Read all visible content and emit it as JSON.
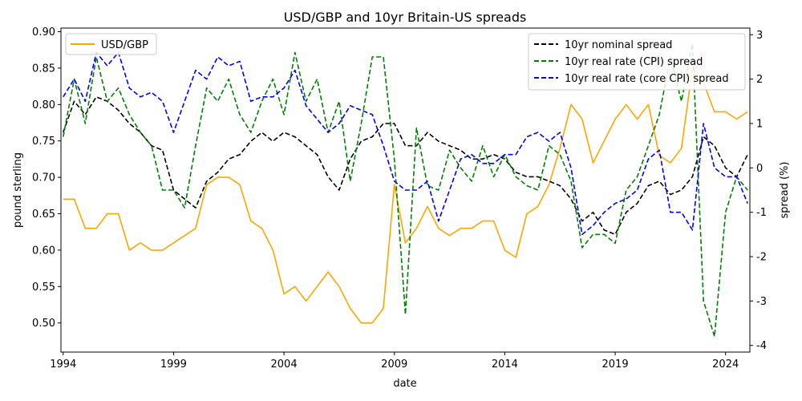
{
  "chart_data": {
    "type": "line",
    "title": "USD/GBP and 10yr Britain-US spreads",
    "xlabel": "date",
    "ylabel_left": "pound sterling",
    "ylabel_right": "spread (%)",
    "x_ticks": [
      "1994",
      "1999",
      "2004",
      "2009",
      "2014",
      "2019",
      "2024"
    ],
    "xlim": [
      1993.9,
      2025.1
    ],
    "ylim_left": [
      0.46,
      0.905
    ],
    "ylim_right": [
      -4.15,
      3.15
    ],
    "y_ticks_left": [
      0.5,
      0.55,
      0.6,
      0.65,
      0.7,
      0.75,
      0.8,
      0.85,
      0.9
    ],
    "y_ticks_right": [
      -4,
      -3,
      -2,
      -1,
      0,
      1,
      2,
      3
    ],
    "legend_left": {
      "placement": "top-left",
      "entries": [
        "USD/GBP"
      ]
    },
    "legend_right": {
      "placement": "top-right",
      "entries": [
        "10yr nominal spread",
        "10yr real rate (CPI) spread",
        "10yr real rate (core CPI) spread"
      ]
    },
    "grid": false,
    "series": [
      {
        "name": "USD/GBP",
        "axis": "left",
        "color": "#ffa500",
        "dash": "solid",
        "x": [
          1994.0,
          1994.5,
          1995.0,
          1995.5,
          1996.0,
          1996.5,
          1997.0,
          1997.5,
          1998.0,
          1998.5,
          1999.0,
          1999.5,
          2000.0,
          2000.5,
          2001.0,
          2001.5,
          2002.0,
          2002.5,
          2003.0,
          2003.5,
          2004.0,
          2004.5,
          2005.0,
          2005.5,
          2006.0,
          2006.5,
          2007.0,
          2007.5,
          2008.0,
          2008.5,
          2009.0,
          2009.5,
          2010.0,
          2010.5,
          2011.0,
          2011.5,
          2012.0,
          2012.5,
          2013.0,
          2013.5,
          2014.0,
          2014.5,
          2015.0,
          2015.5,
          2016.0,
          2016.5,
          2017.0,
          2017.5,
          2018.0,
          2018.5,
          2019.0,
          2019.5,
          2020.0,
          2020.5,
          2021.0,
          2021.5,
          2022.0,
          2022.5,
          2023.0,
          2023.5,
          2024.0,
          2024.5,
          2025.0
        ],
        "y": [
          0.67,
          0.67,
          0.63,
          0.63,
          0.65,
          0.65,
          0.6,
          0.61,
          0.6,
          0.6,
          0.61,
          0.62,
          0.63,
          0.69,
          0.7,
          0.7,
          0.69,
          0.64,
          0.63,
          0.6,
          0.54,
          0.55,
          0.53,
          0.55,
          0.57,
          0.55,
          0.52,
          0.5,
          0.5,
          0.52,
          0.69,
          0.61,
          0.63,
          0.66,
          0.63,
          0.62,
          0.63,
          0.63,
          0.64,
          0.64,
          0.6,
          0.59,
          0.65,
          0.66,
          0.69,
          0.74,
          0.8,
          0.78,
          0.72,
          0.75,
          0.78,
          0.8,
          0.78,
          0.8,
          0.73,
          0.72,
          0.74,
          0.85,
          0.83,
          0.79,
          0.79,
          0.78,
          0.79
        ]
      },
      {
        "name": "10yr nominal spread",
        "axis": "right",
        "color": "#000000",
        "dash": "dashed",
        "x": [
          1994.0,
          1994.5,
          1995.0,
          1995.5,
          1996.0,
          1996.5,
          1997.0,
          1997.5,
          1998.0,
          1998.5,
          1999.0,
          1999.5,
          2000.0,
          2000.5,
          2001.0,
          2001.5,
          2002.0,
          2002.5,
          2003.0,
          2003.5,
          2004.0,
          2004.5,
          2005.0,
          2005.5,
          2006.0,
          2006.5,
          2007.0,
          2007.5,
          2008.0,
          2008.5,
          2009.0,
          2009.5,
          2010.0,
          2010.5,
          2011.0,
          2011.5,
          2012.0,
          2012.5,
          2013.0,
          2013.5,
          2014.0,
          2014.5,
          2015.0,
          2015.5,
          2016.0,
          2016.5,
          2017.0,
          2017.5,
          2018.0,
          2018.5,
          2019.0,
          2019.5,
          2020.0,
          2020.5,
          2021.0,
          2021.5,
          2022.0,
          2022.5,
          2023.0,
          2023.5,
          2024.0,
          2024.5,
          2025.0
        ],
        "y": [
          0.8,
          1.5,
          1.2,
          1.6,
          1.5,
          1.3,
          1.0,
          0.8,
          0.5,
          0.4,
          -0.5,
          -0.7,
          -0.9,
          -0.3,
          -0.1,
          0.2,
          0.3,
          0.6,
          0.8,
          0.6,
          0.8,
          0.7,
          0.5,
          0.3,
          -0.2,
          -0.5,
          0.2,
          0.6,
          0.7,
          1.0,
          1.0,
          0.5,
          0.5,
          0.8,
          0.6,
          0.5,
          0.4,
          0.2,
          0.2,
          0.3,
          0.2,
          -0.1,
          -0.2,
          -0.2,
          -0.3,
          -0.4,
          -0.7,
          -1.2,
          -1.0,
          -1.4,
          -1.5,
          -1.0,
          -0.8,
          -0.4,
          -0.3,
          -0.6,
          -0.5,
          -0.2,
          0.7,
          0.5,
          0.0,
          -0.2,
          0.3
        ]
      },
      {
        "name": "10yr real rate (CPI) spread",
        "axis": "right",
        "color": "#008000",
        "dash": "dashed",
        "x": [
          1994.0,
          1994.5,
          1995.0,
          1995.5,
          1996.0,
          1996.5,
          1997.0,
          1997.5,
          1998.0,
          1998.5,
          1999.0,
          1999.5,
          2000.0,
          2000.5,
          2001.0,
          2001.5,
          2002.0,
          2002.5,
          2003.0,
          2003.5,
          2004.0,
          2004.5,
          2005.0,
          2005.5,
          2006.0,
          2006.5,
          2007.0,
          2007.5,
          2008.0,
          2008.5,
          2009.0,
          2009.5,
          2010.0,
          2010.5,
          2011.0,
          2011.5,
          2012.0,
          2012.5,
          2013.0,
          2013.5,
          2014.0,
          2014.5,
          2015.0,
          2015.5,
          2016.0,
          2016.5,
          2017.0,
          2017.5,
          2018.0,
          2018.5,
          2019.0,
          2019.5,
          2020.0,
          2020.5,
          2021.0,
          2021.5,
          2022.0,
          2022.5,
          2023.0,
          2023.5,
          2024.0,
          2024.5,
          2025.0
        ],
        "y": [
          0.7,
          2.0,
          1.0,
          2.5,
          1.5,
          1.8,
          1.2,
          0.8,
          0.5,
          -0.5,
          -0.5,
          -0.9,
          0.5,
          1.8,
          1.5,
          2.0,
          1.2,
          0.8,
          1.5,
          2.0,
          1.2,
          2.6,
          1.5,
          2.0,
          0.8,
          1.5,
          -0.3,
          1.0,
          2.5,
          2.5,
          0.2,
          -3.3,
          0.9,
          -0.4,
          -0.5,
          0.4,
          0.0,
          -0.3,
          0.5,
          -0.2,
          0.3,
          -0.2,
          -0.4,
          -0.5,
          0.5,
          0.3,
          -0.3,
          -1.8,
          -1.5,
          -1.5,
          -1.7,
          -0.5,
          -0.2,
          0.5,
          1.2,
          2.5,
          1.5,
          2.8,
          -3.0,
          -3.8,
          -1.0,
          -0.2,
          -0.5
        ]
      },
      {
        "name": "10yr real rate (core CPI) spread",
        "axis": "right",
        "color": "#0000ff",
        "dash": "dashed",
        "x": [
          1994.0,
          1994.5,
          1995.0,
          1995.5,
          1996.0,
          1996.5,
          1997.0,
          1997.5,
          1998.0,
          1998.5,
          1999.0,
          1999.5,
          2000.0,
          2000.5,
          2001.0,
          2001.5,
          2002.0,
          2002.5,
          2003.0,
          2003.5,
          2004.0,
          2004.5,
          2005.0,
          2005.5,
          2006.0,
          2006.5,
          2007.0,
          2007.5,
          2008.0,
          2008.5,
          2009.0,
          2009.5,
          2010.0,
          2010.5,
          2011.0,
          2011.5,
          2012.0,
          2012.5,
          2013.0,
          2013.5,
          2014.0,
          2014.5,
          2015.0,
          2015.5,
          2016.0,
          2016.5,
          2017.0,
          2017.5,
          2018.0,
          2018.5,
          2019.0,
          2019.5,
          2020.0,
          2020.5,
          2021.0,
          2021.5,
          2022.0,
          2022.5,
          2023.0,
          2023.5,
          2024.0,
          2024.5,
          2025.0
        ],
        "y": [
          1.6,
          2.0,
          1.5,
          2.6,
          2.3,
          2.6,
          1.8,
          1.6,
          1.7,
          1.5,
          0.8,
          1.5,
          2.2,
          2.0,
          2.5,
          2.3,
          2.4,
          1.5,
          1.6,
          1.6,
          1.8,
          2.2,
          1.4,
          1.1,
          0.8,
          1.0,
          1.4,
          1.3,
          1.2,
          0.5,
          -0.3,
          -0.5,
          -0.5,
          -0.3,
          -1.2,
          -0.5,
          0.2,
          0.3,
          0.1,
          0.1,
          0.3,
          0.3,
          0.7,
          0.8,
          0.6,
          0.8,
          0.0,
          -1.5,
          -1.3,
          -1.0,
          -0.8,
          -0.7,
          -0.5,
          0.2,
          0.4,
          -1.0,
          -1.0,
          -1.4,
          1.0,
          0.0,
          -0.2,
          -0.2,
          -0.8
        ]
      }
    ]
  }
}
